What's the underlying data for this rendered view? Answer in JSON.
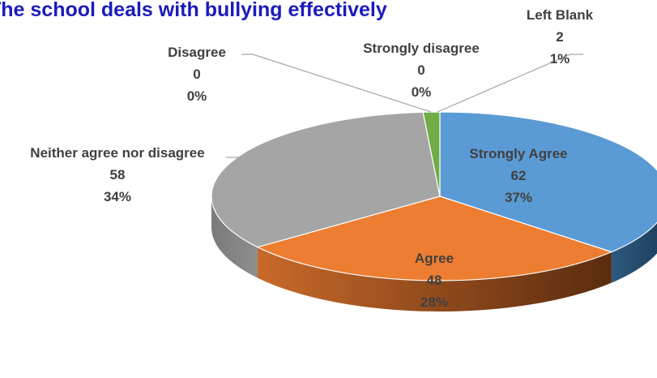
{
  "chart_data": {
    "type": "pie",
    "title": "The school deals with bullying effectively",
    "slices": [
      {
        "label": "Strongly Agree",
        "value": 62,
        "percent": "37%",
        "color": "#5b9bd5"
      },
      {
        "label": "Agree",
        "value": 48,
        "percent": "28%",
        "color": "#ed7d31"
      },
      {
        "label": "Neither agree nor disagree",
        "value": 58,
        "percent": "34%",
        "color": "#a5a5a5"
      },
      {
        "label": "Disagree",
        "value": 0,
        "percent": "0%",
        "color": "#ffc000"
      },
      {
        "label": "Strongly disagree",
        "value": 0,
        "percent": "0%",
        "color": "#4472c4"
      },
      {
        "label": "Left  Blank",
        "value": 2,
        "percent": "1%",
        "color": "#70ad47"
      }
    ]
  }
}
